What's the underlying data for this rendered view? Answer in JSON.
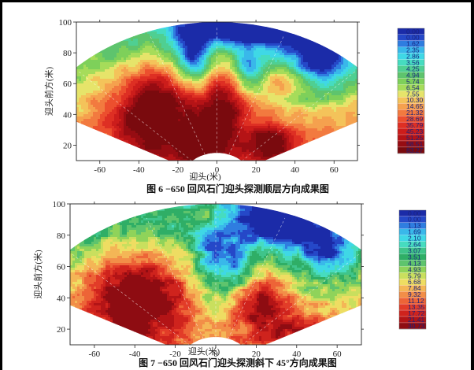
{
  "chart_data": [
    {
      "type": "heatmap",
      "shape": "fan",
      "caption": "图 6  −650 回风石门迎头探测顺层方向成果图",
      "xlabel": "迎头(米)",
      "ylabel": "迎头前方(米)",
      "xlim": [
        -72,
        72
      ],
      "ylim": [
        10,
        100
      ],
      "xticks": [
        -60,
        -40,
        -20,
        0,
        20,
        40,
        60
      ],
      "yticks": [
        20,
        40,
        60,
        80,
        100
      ],
      "fan_apex": [
        0,
        -3
      ],
      "fan_angle_deg": 62,
      "fan_radius": [
        18,
        103
      ],
      "guide_ray_angles_deg": [
        -45,
        -20,
        0,
        20,
        45
      ],
      "grid": false,
      "legend_position": "right",
      "legend_values": [
        "0.00",
        "0.00",
        "1.62",
        "2.35",
        "2.86",
        "3.56",
        "4.25",
        "4.94",
        "5.74",
        "6.54",
        "7.55",
        "10.30",
        "14.65",
        "21.32",
        "28.69",
        "35.79",
        "45.23",
        "51.25",
        "58.51",
        "83.27"
      ],
      "legend_colors": [
        "#1b2ba8",
        "#2548c8",
        "#2f7de0",
        "#39b8ea",
        "#3fd8e6",
        "#46dcc0",
        "#4fcf92",
        "#5ec46d",
        "#7ed05a",
        "#a6dc5a",
        "#e6e46a",
        "#f4c35a",
        "#f5a14e",
        "#f27a3f",
        "#ec4f2e",
        "#de2f23",
        "#cc1d1b",
        "#b51316",
        "#960c12",
        "#7a0a0e"
      ]
    },
    {
      "type": "heatmap",
      "shape": "fan",
      "caption": "图 7  −650 回风石门迎头探测斜下 45°方向成果图",
      "xlabel": "迎头(米)",
      "ylabel": "迎头前方(米)",
      "xlim": [
        -72,
        72
      ],
      "ylim": [
        10,
        100
      ],
      "xticks": [
        -60,
        -40,
        -20,
        0,
        20,
        40,
        60
      ],
      "yticks": [
        20,
        40,
        60,
        80,
        100
      ],
      "fan_apex": [
        0,
        -3
      ],
      "fan_angle_deg": 62,
      "fan_radius": [
        18,
        103
      ],
      "guide_ray_angles_deg": [
        -45,
        -20,
        0,
        20,
        45
      ],
      "grid": false,
      "legend_position": "right",
      "legend_values": [
        "0.00",
        "0.00",
        "1.13",
        "1.69",
        "2.10",
        "2.64",
        "3.07",
        "3.51",
        "4.13",
        "4.93",
        "5.79",
        "6.68",
        "7.84",
        "9.32",
        "11.12",
        "13.35",
        "17.72",
        "21.41",
        "30.73"
      ],
      "legend_colors": [
        "#1b2ba8",
        "#2548c8",
        "#2f7de0",
        "#39b8ea",
        "#3fd8e6",
        "#46dcc0",
        "#3fc48a",
        "#2fae66",
        "#5ec46d",
        "#8fd35a",
        "#c9df5e",
        "#eedd62",
        "#f4b656",
        "#f28e48",
        "#ed6437",
        "#e23c28",
        "#cf231d",
        "#b31416",
        "#8e0c12"
      ]
    }
  ]
}
